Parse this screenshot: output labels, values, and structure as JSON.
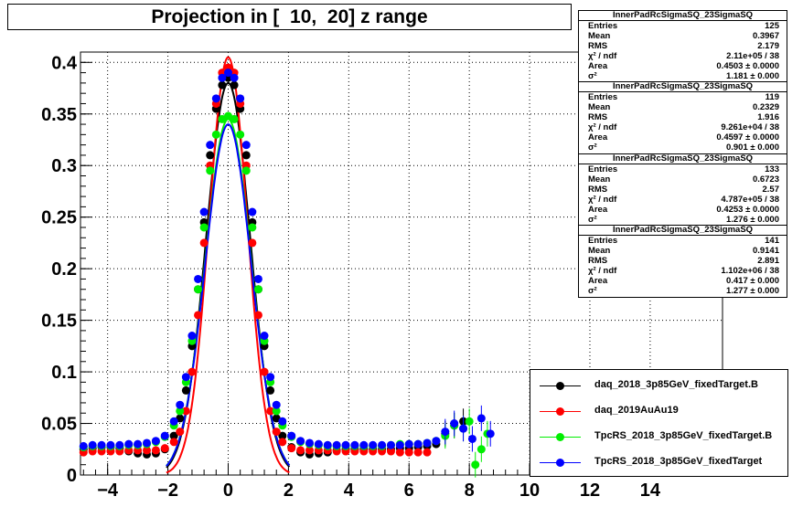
{
  "title": "Projection in [  10,  20] z range",
  "stats": [
    {
      "name": "InnerPadRcSigmaSQ_23SigmaSQ",
      "entries": "125",
      "mean": "0.3967",
      "rms": "2.179",
      "chi2": "2.11e+05 / 38",
      "area": "0.4503 ± 0.0000",
      "sigma2": "1.181 ± 0.000"
    },
    {
      "name": "InnerPadRcSigmaSQ_23SigmaSQ",
      "entries": "119",
      "mean": "0.2329",
      "rms": "1.916",
      "chi2": "9.261e+04 / 38",
      "area": "0.4597 ± 0.0000",
      "sigma2": "0.901 ± 0.000"
    },
    {
      "name": "InnerPadRcSigmaSQ_23SigmaSQ",
      "entries": "133",
      "mean": "0.6723",
      "rms": "2.57",
      "chi2": "4.787e+05 / 38",
      "area": "0.4253 ± 0.0000",
      "sigma2": "1.276 ± 0.000"
    },
    {
      "name": "InnerPadRcSigmaSQ_23SigmaSQ",
      "entries": "141",
      "mean": "0.9141",
      "rms": "2.891",
      "chi2": "1.102e+06 / 38",
      "area": "0.417 ± 0.000",
      "sigma2": "1.277 ± 0.000"
    }
  ],
  "stat_labels": {
    "entries": "Entries",
    "mean": "Mean",
    "rms": "RMS",
    "chi2": "χ² / ndf",
    "area": "Area",
    "sigma2": "σ²"
  },
  "chart_data": {
    "type": "scatter",
    "title": "Projection in [  10,  20] z range",
    "xlim": [
      -4.9,
      16.4
    ],
    "ylim": [
      0,
      0.41
    ],
    "grid": true,
    "legend_position": "bottom-right",
    "x_ticks": [
      -4,
      -2,
      0,
      2,
      4,
      6,
      8,
      10,
      12,
      14
    ],
    "y_ticks": [
      0,
      0.05,
      0.1,
      0.15,
      0.2,
      0.25,
      0.3,
      0.35,
      0.4
    ],
    "x_tick_labels": [
      "−4",
      "−2",
      "0",
      "2",
      "4",
      "6",
      "8",
      "10",
      "12",
      "14"
    ],
    "y_tick_labels": [
      "0",
      "0.05",
      "0.1",
      "0.15",
      "0.2",
      "0.25",
      "0.3",
      "0.35",
      "0.4"
    ],
    "series": [
      {
        "name": "daq_2018_3p85GeV_fixedTarget.B",
        "color": "#000000",
        "fit_peak": 0.38,
        "fit_sigma2": 1.181,
        "x": [
          -4.8,
          -4.5,
          -4.2,
          -3.9,
          -3.6,
          -3.3,
          -3.0,
          -2.7,
          -2.4,
          -2.1,
          -1.8,
          -1.6,
          -1.4,
          -1.2,
          -1.0,
          -0.8,
          -0.6,
          -0.4,
          -0.2,
          0.0,
          0.2,
          0.4,
          0.6,
          0.8,
          1.0,
          1.2,
          1.4,
          1.6,
          1.8,
          2.1,
          2.4,
          2.7,
          3.0,
          3.3,
          3.6,
          3.9,
          4.2,
          4.5,
          4.8,
          5.1,
          5.4,
          5.7,
          6.0,
          6.3,
          6.6,
          6.9,
          7.2,
          7.5,
          7.8
        ],
        "y": [
          0.025,
          0.026,
          0.027,
          0.027,
          0.026,
          0.023,
          0.021,
          0.02,
          0.021,
          0.025,
          0.038,
          0.055,
          0.082,
          0.125,
          0.18,
          0.245,
          0.31,
          0.355,
          0.378,
          0.385,
          0.378,
          0.355,
          0.31,
          0.245,
          0.18,
          0.125,
          0.082,
          0.055,
          0.038,
          0.027,
          0.022,
          0.02,
          0.021,
          0.022,
          0.024,
          0.025,
          0.025,
          0.025,
          0.025,
          0.025,
          0.025,
          0.026,
          0.026,
          0.027,
          0.028,
          0.03,
          0.04,
          0.048,
          0.052
        ]
      },
      {
        "name": "daq_2019AuAu19",
        "color": "#ff0000",
        "fit_peak": 0.405,
        "fit_sigma2": 0.901,
        "x": [
          -4.8,
          -4.5,
          -4.2,
          -3.9,
          -3.6,
          -3.3,
          -3.0,
          -2.7,
          -2.4,
          -2.1,
          -1.8,
          -1.6,
          -1.4,
          -1.2,
          -1.0,
          -0.8,
          -0.6,
          -0.4,
          -0.2,
          0.0,
          0.2,
          0.4,
          0.6,
          0.8,
          1.0,
          1.2,
          1.4,
          1.6,
          1.8,
          2.1,
          2.4,
          2.7,
          3.0,
          3.3,
          3.6,
          3.9,
          4.2,
          4.5,
          4.8,
          5.1,
          5.4,
          5.7,
          6.0,
          6.3,
          6.6
        ],
        "y": [
          0.022,
          0.023,
          0.023,
          0.023,
          0.023,
          0.024,
          0.024,
          0.024,
          0.024,
          0.026,
          0.032,
          0.042,
          0.062,
          0.1,
          0.155,
          0.225,
          0.3,
          0.36,
          0.39,
          0.395,
          0.39,
          0.36,
          0.3,
          0.225,
          0.155,
          0.1,
          0.062,
          0.042,
          0.032,
          0.026,
          0.024,
          0.024,
          0.024,
          0.024,
          0.023,
          0.023,
          0.023,
          0.023,
          0.023,
          0.023,
          0.023,
          0.022,
          0.022,
          0.022,
          0.022
        ]
      },
      {
        "name": "TpcRS_2018_3p85GeV_fixedTarget.B",
        "color": "#00ee00",
        "fit_peak": 0.345,
        "fit_sigma2": 1.276,
        "x": [
          -4.8,
          -4.5,
          -4.2,
          -3.9,
          -3.6,
          -3.3,
          -3.0,
          -2.7,
          -2.4,
          -2.1,
          -1.8,
          -1.6,
          -1.4,
          -1.2,
          -1.0,
          -0.8,
          -0.6,
          -0.4,
          -0.2,
          0.0,
          0.2,
          0.4,
          0.6,
          0.8,
          1.0,
          1.2,
          1.4,
          1.6,
          1.8,
          2.1,
          2.4,
          2.7,
          3.0,
          3.3,
          3.6,
          3.9,
          4.2,
          4.5,
          4.8,
          5.1,
          5.4,
          5.7,
          6.0,
          6.3,
          6.6,
          6.9,
          7.2,
          7.5,
          7.8,
          8.0,
          8.2,
          8.4,
          8.6
        ],
        "y": [
          0.027,
          0.028,
          0.028,
          0.028,
          0.028,
          0.029,
          0.029,
          0.03,
          0.032,
          0.037,
          0.048,
          0.062,
          0.09,
          0.13,
          0.18,
          0.24,
          0.295,
          0.33,
          0.345,
          0.348,
          0.345,
          0.33,
          0.295,
          0.24,
          0.18,
          0.13,
          0.09,
          0.062,
          0.048,
          0.037,
          0.032,
          0.03,
          0.029,
          0.028,
          0.028,
          0.028,
          0.028,
          0.028,
          0.028,
          0.028,
          0.029,
          0.03,
          0.03,
          0.03,
          0.031,
          0.033,
          0.038,
          0.048,
          0.045,
          0.052,
          0.01,
          0.025,
          0.04
        ]
      },
      {
        "name": "TpcRS_2018_3p85GeV_fixedTarget",
        "color": "#0000ff",
        "fit_peak": 0.34,
        "fit_sigma2": 1.277,
        "x": [
          -4.8,
          -4.5,
          -4.2,
          -3.9,
          -3.6,
          -3.3,
          -3.0,
          -2.7,
          -2.4,
          -2.1,
          -1.8,
          -1.6,
          -1.4,
          -1.2,
          -1.0,
          -0.8,
          -0.6,
          -0.4,
          -0.2,
          0.0,
          0.2,
          0.4,
          0.6,
          0.8,
          1.0,
          1.2,
          1.4,
          1.6,
          1.8,
          2.1,
          2.4,
          2.7,
          3.0,
          3.3,
          3.6,
          3.9,
          4.2,
          4.5,
          4.8,
          5.1,
          5.4,
          5.7,
          6.0,
          6.3,
          6.6,
          6.9,
          7.2,
          7.5,
          7.8,
          8.1,
          8.4,
          8.7
        ],
        "y": [
          0.028,
          0.029,
          0.029,
          0.029,
          0.029,
          0.03,
          0.03,
          0.031,
          0.033,
          0.038,
          0.052,
          0.068,
          0.095,
          0.135,
          0.19,
          0.255,
          0.32,
          0.365,
          0.385,
          0.39,
          0.385,
          0.365,
          0.32,
          0.255,
          0.19,
          0.135,
          0.095,
          0.068,
          0.052,
          0.038,
          0.033,
          0.031,
          0.03,
          0.029,
          0.029,
          0.029,
          0.029,
          0.029,
          0.029,
          0.029,
          0.029,
          0.029,
          0.03,
          0.03,
          0.031,
          0.033,
          0.042,
          0.05,
          0.045,
          0.035,
          0.055,
          0.04
        ]
      }
    ]
  }
}
